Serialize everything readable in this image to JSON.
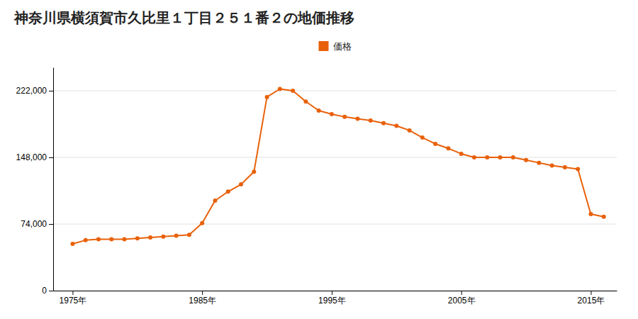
{
  "chart_data": {
    "type": "line",
    "title": "神奈川県横須賀市久比里１丁目２５１番２の地価推移",
    "x": [
      1975,
      1976,
      1977,
      1978,
      1979,
      1980,
      1981,
      1982,
      1983,
      1984,
      1985,
      1986,
      1987,
      1988,
      1989,
      1990,
      1991,
      1992,
      1993,
      1994,
      1995,
      1996,
      1997,
      1998,
      1999,
      2000,
      2001,
      2002,
      2003,
      2004,
      2005,
      2006,
      2007,
      2008,
      2009,
      2010,
      2011,
      2012,
      2013,
      2014,
      2015,
      2016
    ],
    "series": [
      {
        "name": "価格",
        "color": "#E8610A",
        "marker": "circle",
        "line_style": "solid",
        "values": [
          52000,
          56000,
          57000,
          57000,
          57000,
          58000,
          59000,
          60000,
          61000,
          62000,
          75000,
          100000,
          110000,
          118000,
          132000,
          215000,
          224000,
          222000,
          210000,
          200000,
          196000,
          193000,
          191000,
          189000,
          186000,
          183000,
          178000,
          170000,
          163000,
          158000,
          152000,
          148000,
          148000,
          148000,
          148000,
          145000,
          142000,
          139000,
          137000,
          135000,
          85000,
          82000
        ]
      }
    ],
    "xlim": [
      1973.5,
      2017
    ],
    "xticks": [
      {
        "value": 1975,
        "label": "1975年"
      },
      {
        "value": 1985,
        "label": "1985年"
      },
      {
        "value": 1995,
        "label": "1995年"
      },
      {
        "value": 2005,
        "label": "2005年"
      },
      {
        "value": 2015,
        "label": "2015年"
      }
    ],
    "ylim": [
      0,
      248000
    ],
    "yticks": [
      0,
      {
        "value": 74000,
        "label": "74,000"
      },
      {
        "value": 148000,
        "label": "148,000"
      },
      {
        "value": 222000,
        "label": "222,000"
      }
    ],
    "grid": "y",
    "legend": "top"
  }
}
